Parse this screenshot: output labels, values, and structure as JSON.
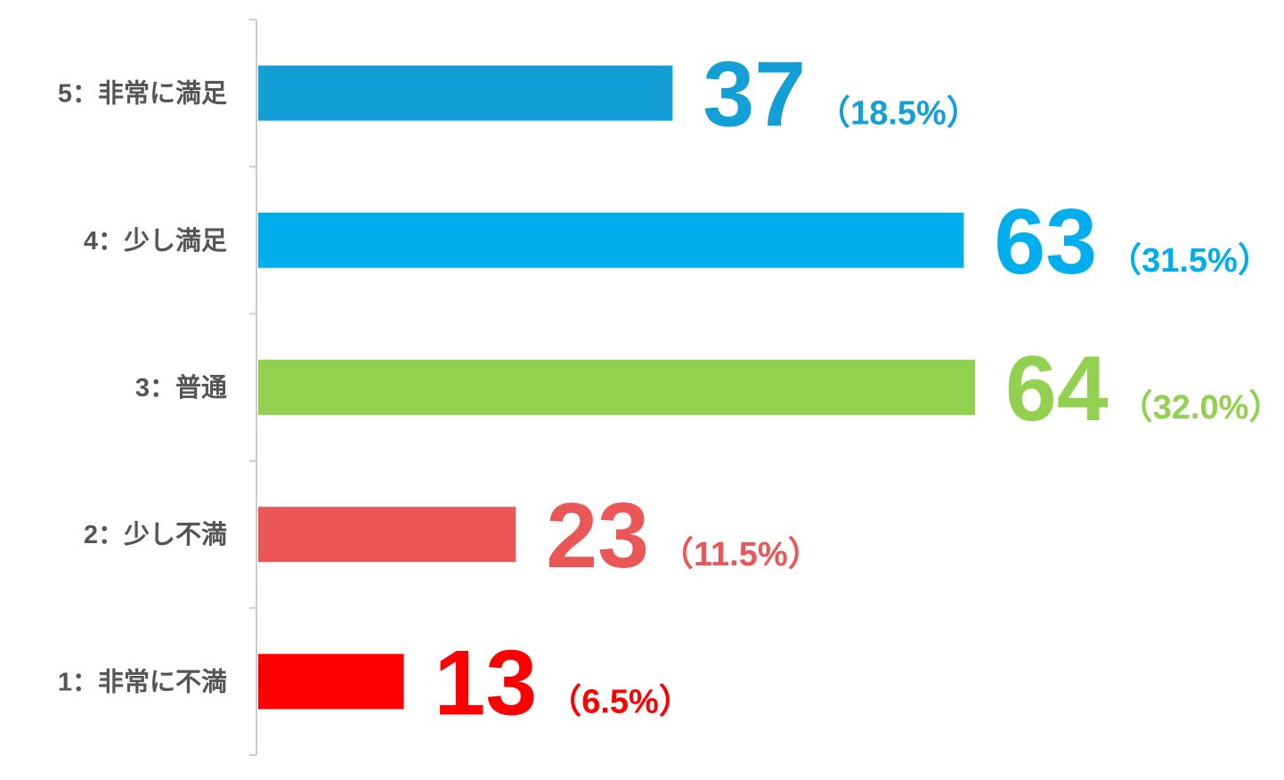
{
  "chart_data": {
    "type": "hbar",
    "categories": [
      "5：非常に満足",
      "4：少し満足",
      "3：普通",
      "2：少し不満",
      "1：非常に不満"
    ],
    "values": [
      37,
      63,
      64,
      23,
      13
    ],
    "percent_labels": [
      "（18.5%）",
      "（31.5%）",
      "（32.0%）",
      "（11.5%）",
      "（6.5%）"
    ],
    "colors": [
      "#149fd7",
      "#00aeee",
      "#92d050",
      "#eb5757",
      "#ff0000"
    ],
    "xlim": [
      0,
      90
    ]
  }
}
